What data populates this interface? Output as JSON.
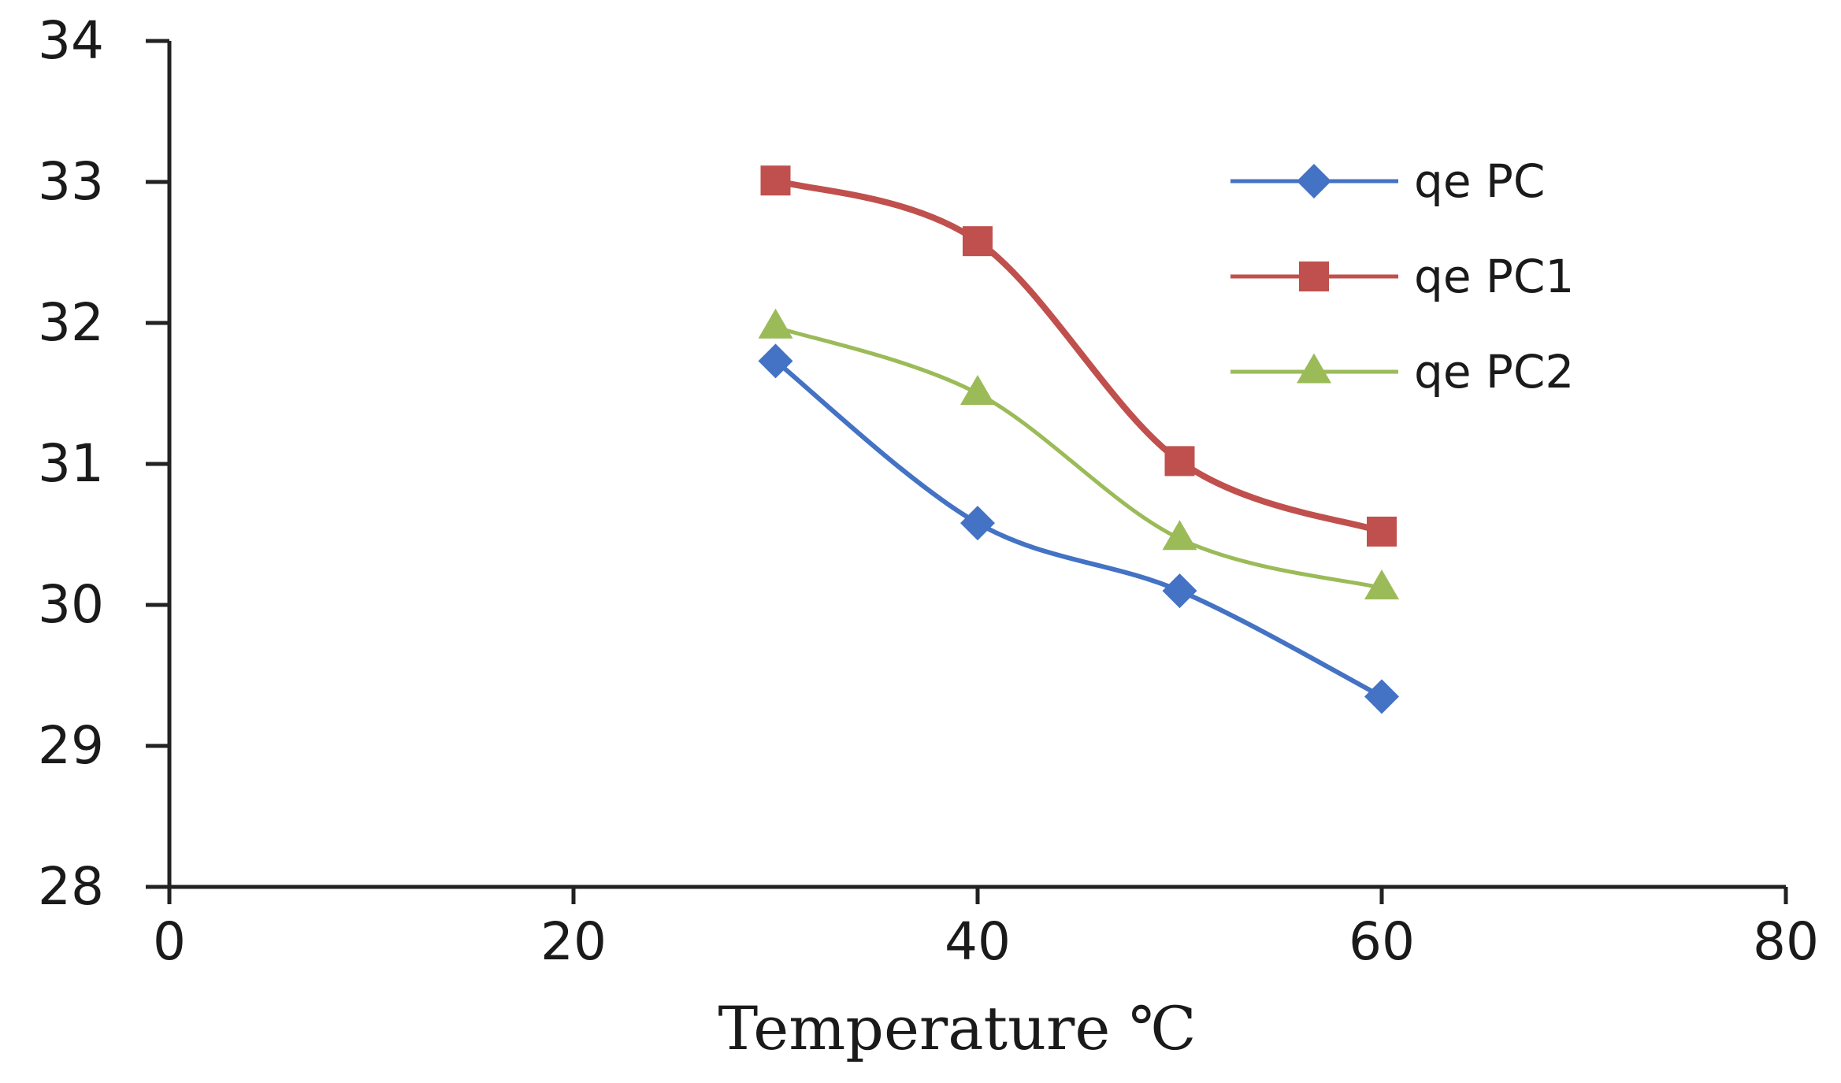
{
  "chart_data": {
    "type": "line",
    "title": "",
    "xlabel": "Temperature  ℃",
    "ylabel": "",
    "xlim": [
      0,
      80
    ],
    "ylim": [
      28,
      34
    ],
    "xticks": [
      0,
      20,
      40,
      60,
      80
    ],
    "yticks": [
      28,
      29,
      30,
      31,
      32,
      33,
      34
    ],
    "grid": false,
    "legend_position": "top-right",
    "x": [
      30,
      40,
      50,
      60
    ],
    "series": [
      {
        "name": "qe PC",
        "values": [
          31.73,
          30.58,
          30.1,
          29.35
        ],
        "color": "#4472C4",
        "marker": "diamond"
      },
      {
        "name": "qe PC1",
        "values": [
          33.01,
          32.58,
          31.02,
          30.52
        ],
        "color": "#C0504D",
        "marker": "square"
      },
      {
        "name": "qe PC2",
        "values": [
          31.97,
          31.5,
          30.47,
          30.12
        ],
        "color": "#9BBB59",
        "marker": "triangle"
      }
    ]
  }
}
